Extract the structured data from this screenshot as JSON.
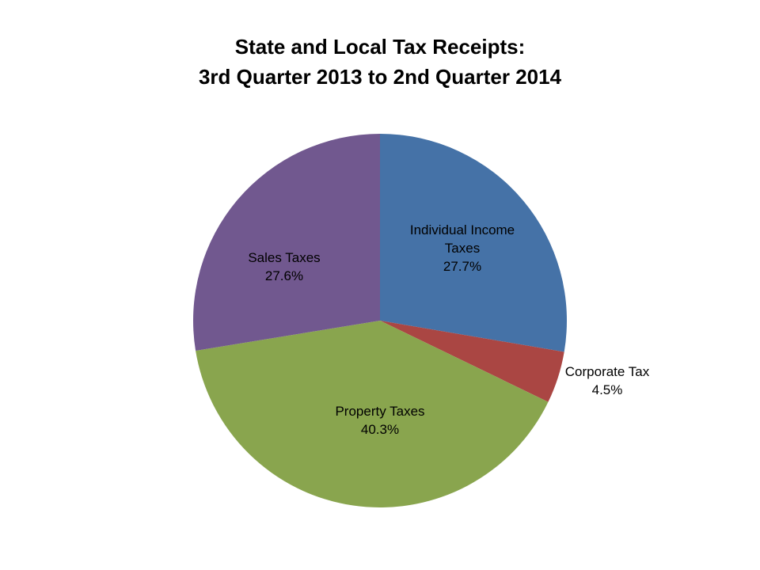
{
  "chart": {
    "title_line1": "State and Local Tax Receipts:",
    "title_line2": "3rd Quarter 2013 to 2nd Quarter 2014"
  },
  "chart_data": {
    "type": "pie",
    "title": "State and Local Tax Receipts: 3rd Quarter 2013 to 2nd Quarter 2014",
    "slices": [
      {
        "name": "Individual Income Taxes",
        "label_lines": [
          "Individual Income",
          "Taxes"
        ],
        "value": 27.7,
        "display": "27.7%",
        "color": "#4572A7"
      },
      {
        "name": "Corporate Tax",
        "label_lines": [
          "Corporate Tax"
        ],
        "value": 4.5,
        "display": "4.5%",
        "color": "#AA4643"
      },
      {
        "name": "Property Taxes",
        "label_lines": [
          "Property Taxes"
        ],
        "value": 40.3,
        "display": "40.3%",
        "color": "#89A54E"
      },
      {
        "name": "Sales Taxes",
        "label_lines": [
          "Sales Taxes"
        ],
        "value": 27.6,
        "display": "27.6%",
        "color": "#71588F"
      }
    ],
    "start_angle": "12 o'clock",
    "direction": "clockwise",
    "legend": "none",
    "data_labels": true
  }
}
